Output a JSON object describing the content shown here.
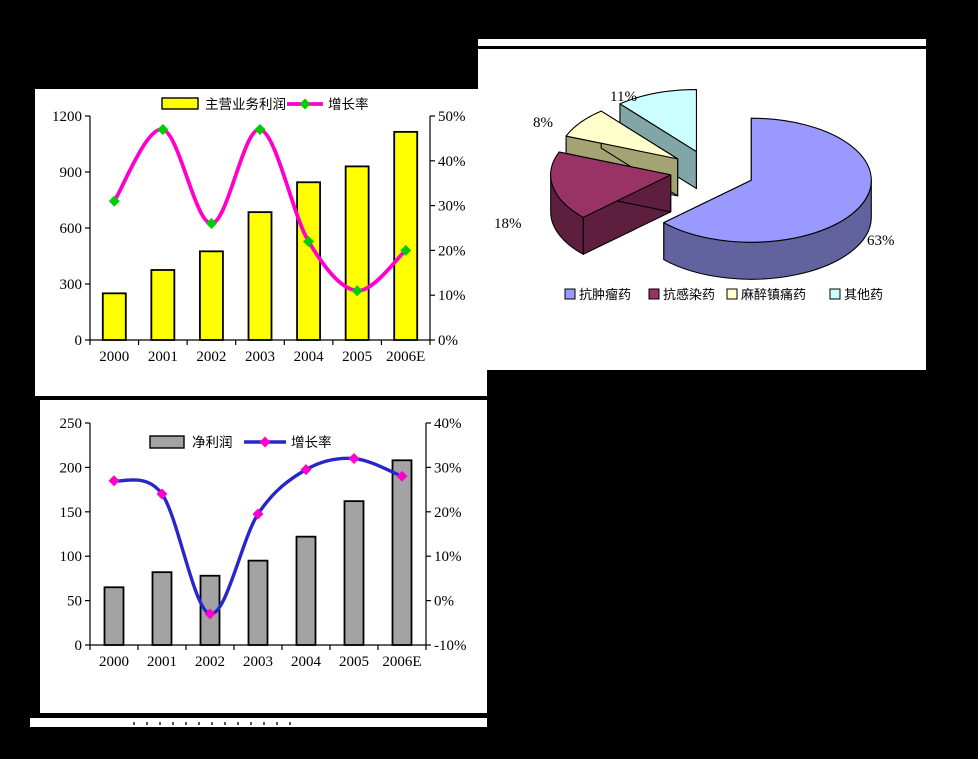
{
  "page": {
    "background": "#000000",
    "panel_background": "#FFFFFF"
  },
  "chart_data": [
    {
      "id": "main-business-profit-chart",
      "type": "combo_bar_line",
      "categories": [
        "2000",
        "2001",
        "2002",
        "2003",
        "2004",
        "2005",
        "2006E"
      ],
      "series": [
        {
          "name": "主营业务利润",
          "type": "bar",
          "axis": "left",
          "color": "#FFFF00",
          "values": [
            250,
            375,
            475,
            685,
            845,
            930,
            1115
          ]
        },
        {
          "name": "增长率",
          "type": "line",
          "axis": "right",
          "color": "#FF00CC",
          "marker_color": "#00CC00",
          "values": [
            31,
            47,
            26,
            47,
            22,
            11,
            20
          ]
        }
      ],
      "left_axis": {
        "min": 0,
        "max": 1200,
        "tick_values": [
          0,
          300,
          600,
          900,
          1200
        ],
        "tick_labels": [
          "0",
          "300",
          "600",
          "900",
          "1200"
        ]
      },
      "right_axis": {
        "min": 0,
        "max": 50,
        "tick_values": [
          0,
          10,
          20,
          30,
          40,
          50
        ],
        "tick_labels": [
          "0%",
          "10%",
          "20%",
          "30%",
          "40%",
          "50%"
        ]
      },
      "legend_position": "top",
      "grid": false
    },
    {
      "id": "drug-category-pie",
      "type": "pie3d",
      "slices": [
        {
          "label": "抗肿瘤药",
          "value": 63,
          "pct_label": "63%",
          "color": "#9999FF",
          "side_color": "#62629E"
        },
        {
          "label": "抗感染药",
          "value": 18,
          "pct_label": "18%",
          "color": "#993366",
          "side_color": "#5E1F3F"
        },
        {
          "label": "麻醉镇痛药",
          "value": 8,
          "pct_label": "8%",
          "color": "#FFFFCC",
          "side_color": "#A3A373"
        },
        {
          "label": "其他药",
          "value": 11,
          "pct_label": "11%",
          "color": "#CCFFFF",
          "side_color": "#82A6A6"
        }
      ],
      "legend_position": "bottom"
    },
    {
      "id": "net-profit-chart",
      "type": "combo_bar_line",
      "categories": [
        "2000",
        "2001",
        "2002",
        "2003",
        "2004",
        "2005",
        "2006E"
      ],
      "series": [
        {
          "name": "净利润",
          "type": "bar",
          "axis": "left",
          "color": "#A3A3A3",
          "values": [
            65,
            82,
            78,
            95,
            122,
            162,
            208
          ]
        },
        {
          "name": "增长率",
          "type": "line",
          "axis": "right",
          "color": "#2626CC",
          "marker_color": "#FF00CC",
          "values": [
            27,
            24,
            -3,
            19.5,
            29.5,
            32,
            28
          ]
        }
      ],
      "left_axis": {
        "min": 0,
        "max": 250,
        "tick_values": [
          0,
          50,
          100,
          150,
          200,
          250
        ],
        "tick_labels": [
          "0",
          "50",
          "100",
          "150",
          "200",
          "250"
        ]
      },
      "right_axis": {
        "min": -10,
        "max": 40,
        "tick_values": [
          -10,
          0,
          10,
          20,
          30,
          40
        ],
        "tick_labels": [
          "-10%",
          "0%",
          "10%",
          "20%",
          "30%",
          "40%"
        ]
      },
      "legend_position": "inside-top",
      "grid": false
    }
  ]
}
